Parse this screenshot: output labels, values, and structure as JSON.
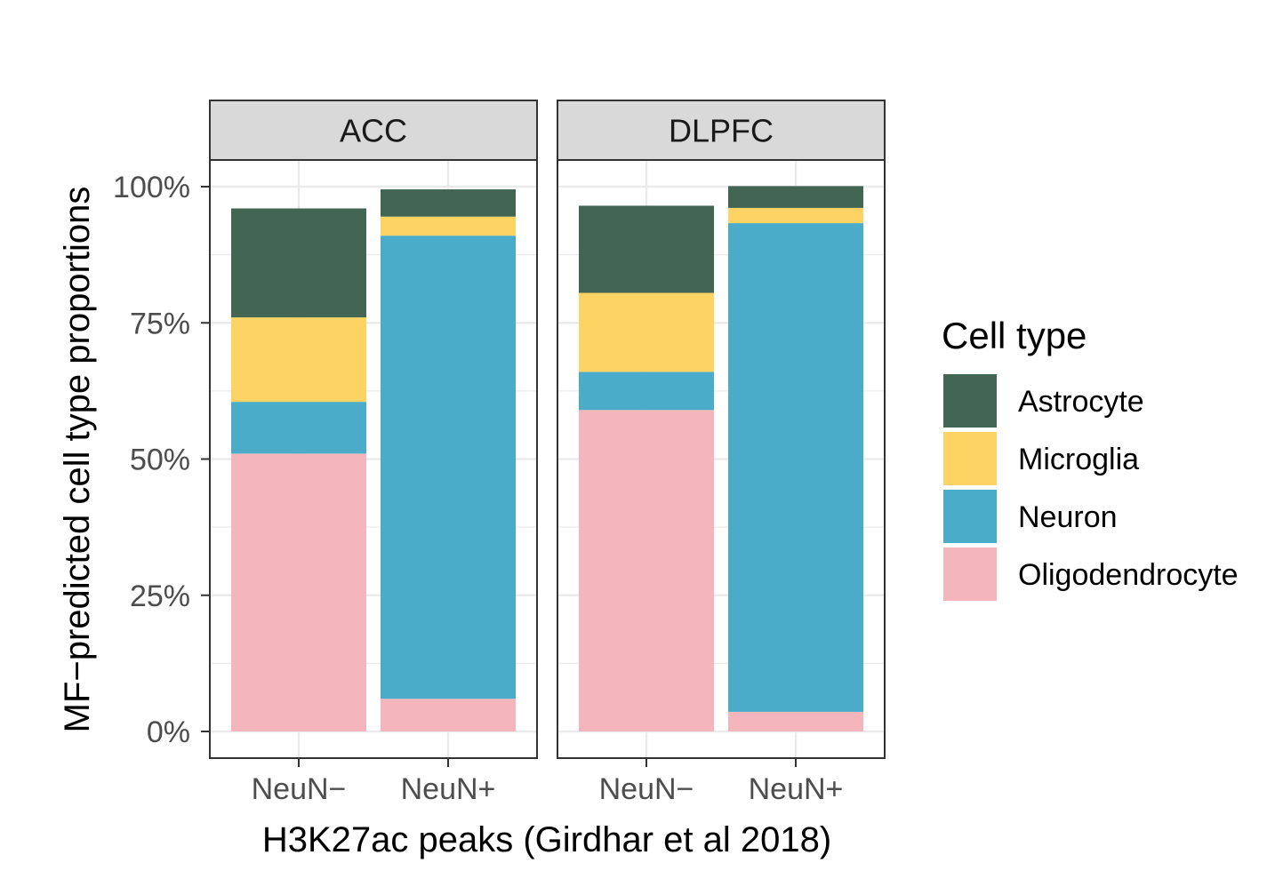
{
  "chart_data": {
    "type": "bar",
    "stacked": true,
    "facets": [
      "ACC",
      "DLPFC"
    ],
    "categories": [
      "NeuN−",
      "NeuN+"
    ],
    "xlabel": "H3K27ac peaks (Girdhar et al 2018)",
    "ylabel": "MF−predicted cell type proportions",
    "ylim": [
      0,
      1.1
    ],
    "yticks": [
      0,
      0.25,
      0.5,
      0.75,
      1.0
    ],
    "ytick_labels": [
      "0%",
      "25%",
      "50%",
      "75%",
      "100%"
    ],
    "legend": {
      "title": "Cell type",
      "position": "right",
      "items": [
        "Astrocyte",
        "Microglia",
        "Neuron",
        "Oligodendrocyte"
      ]
    },
    "colors": {
      "Astrocyte": "#436654",
      "Microglia": "#fdd464",
      "Neuron": "#4aacc9",
      "Oligodendrocyte": "#f5b5bd"
    },
    "stack_order_bottom_to_top": [
      "Oligodendrocyte",
      "Neuron",
      "Microglia",
      "Astrocyte"
    ],
    "series": [
      {
        "name": "Astrocyte",
        "values": {
          "ACC": [
            0.2,
            0.05
          ],
          "DLPFC": [
            0.16,
            0.04
          ]
        }
      },
      {
        "name": "Microglia",
        "values": {
          "ACC": [
            0.155,
            0.035
          ],
          "DLPFC": [
            0.145,
            0.028
          ]
        }
      },
      {
        "name": "Neuron",
        "values": {
          "ACC": [
            0.095,
            0.85
          ],
          "DLPFC": [
            0.07,
            0.897
          ]
        }
      },
      {
        "name": "Oligodendrocyte",
        "values": {
          "ACC": [
            0.51,
            0.06
          ],
          "DLPFC": [
            0.59,
            0.036
          ]
        }
      }
    ]
  }
}
